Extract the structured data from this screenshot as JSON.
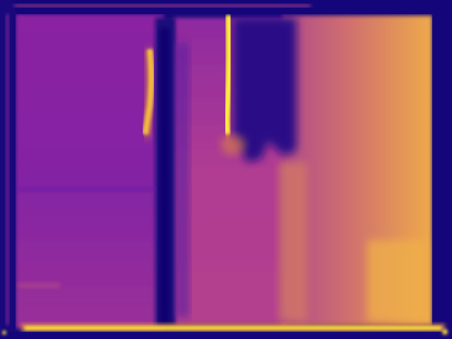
{
  "image": {
    "kind": "false-color heatmap",
    "colormap": "plasma",
    "palette": {
      "deep": "#14067a",
      "violet": "#5a10a0",
      "purple": "#9a2a9e",
      "magenta": "#b03a90",
      "orange": "#e08a50",
      "bright": "#f6c848",
      "yellow": "#fff23a"
    }
  }
}
